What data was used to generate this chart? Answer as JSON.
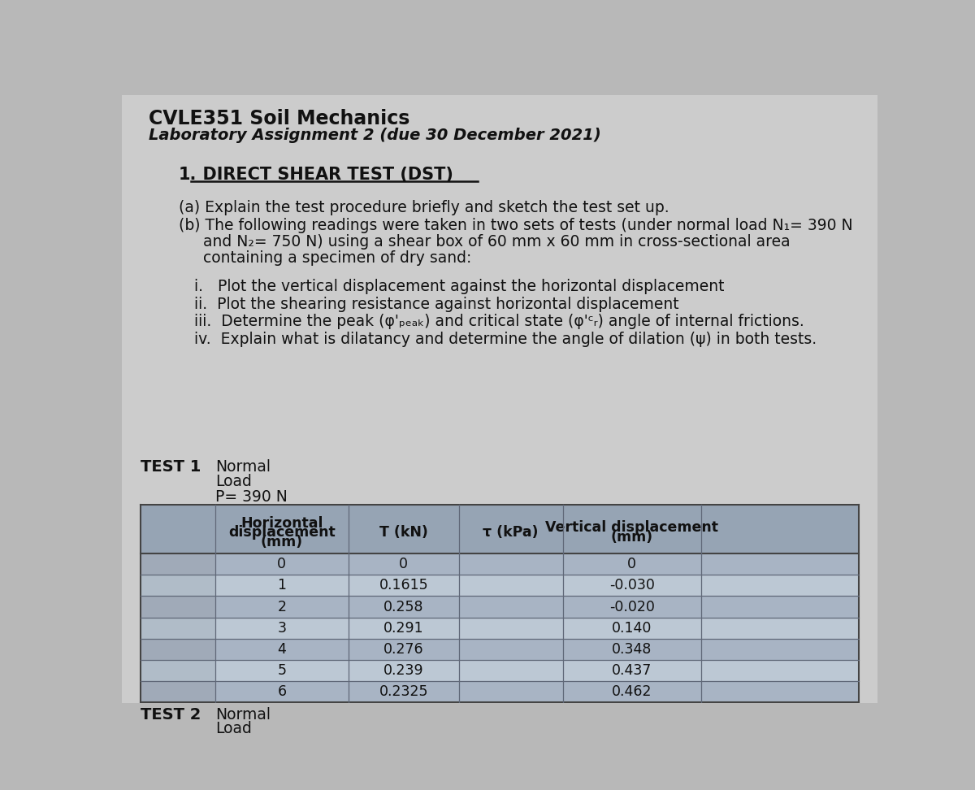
{
  "title_line1": "CVLE351 Soil Mechanics",
  "title_line2": "Laboratory Assignment 2 (due 30 December 2021)",
  "section_num": "1.",
  "section_text": "  DIRECT SHEAR TEST (DST)",
  "para_a": "(a) Explain the test procedure briefly and sketch the test set up.",
  "para_b1": "(b) The following readings were taken in two sets of tests (under normal load N₁= 390 N",
  "para_b2": "     and N₂= 750 N) using a shear box of 60 mm x 60 mm in cross-sectional area",
  "para_b3": "     containing a specimen of dry sand:",
  "item_i": "i.   Plot the vertical displacement against the horizontal displacement",
  "item_ii": "ii.  Plot the shearing resistance against horizontal displacement",
  "item_iii": "iii.  Determine the peak (φ'ₚₑₐₖ) and critical state (φ'ᶜᵣ) angle of internal frictions.",
  "item_iv": "iv.  Explain what is dilatancy and determine the angle of dilation (ψ) in both tests.",
  "test1_label": "TEST 1",
  "test1_n1": "Normal",
  "test1_n2": "Load",
  "test1_n3": "P= 390 N",
  "col_h0": "Horizontal\ndisplacement\n(mm)",
  "col_h1": "T (kN)",
  "col_h2": "τ (kPa)",
  "col_h3": "Vertical displacement\n(mm)",
  "table_data": [
    [
      "0",
      "0",
      "",
      "0"
    ],
    [
      "1",
      "0.1615",
      "",
      "-0.030"
    ],
    [
      "2",
      "0.258",
      "",
      "-0.020"
    ],
    [
      "3",
      "0.291",
      "",
      "0.140"
    ],
    [
      "4",
      "0.276",
      "",
      "0.348"
    ],
    [
      "5",
      "0.239",
      "",
      "0.437"
    ],
    [
      "6",
      "0.2325",
      "",
      "0.462"
    ]
  ],
  "test2_label": "TEST 2",
  "test2_n1": "Normal",
  "test2_n2": "Load",
  "bg_color": "#b8b8b8",
  "paper_color": "#cccccc",
  "tbl_header_bg": "#96a4b4",
  "tbl_row_dark": "#a8b4c4",
  "tbl_row_light": "#bcc8d4",
  "tbl_left_dark": "#a0aab8",
  "tbl_left_light": "#b0bcc8"
}
